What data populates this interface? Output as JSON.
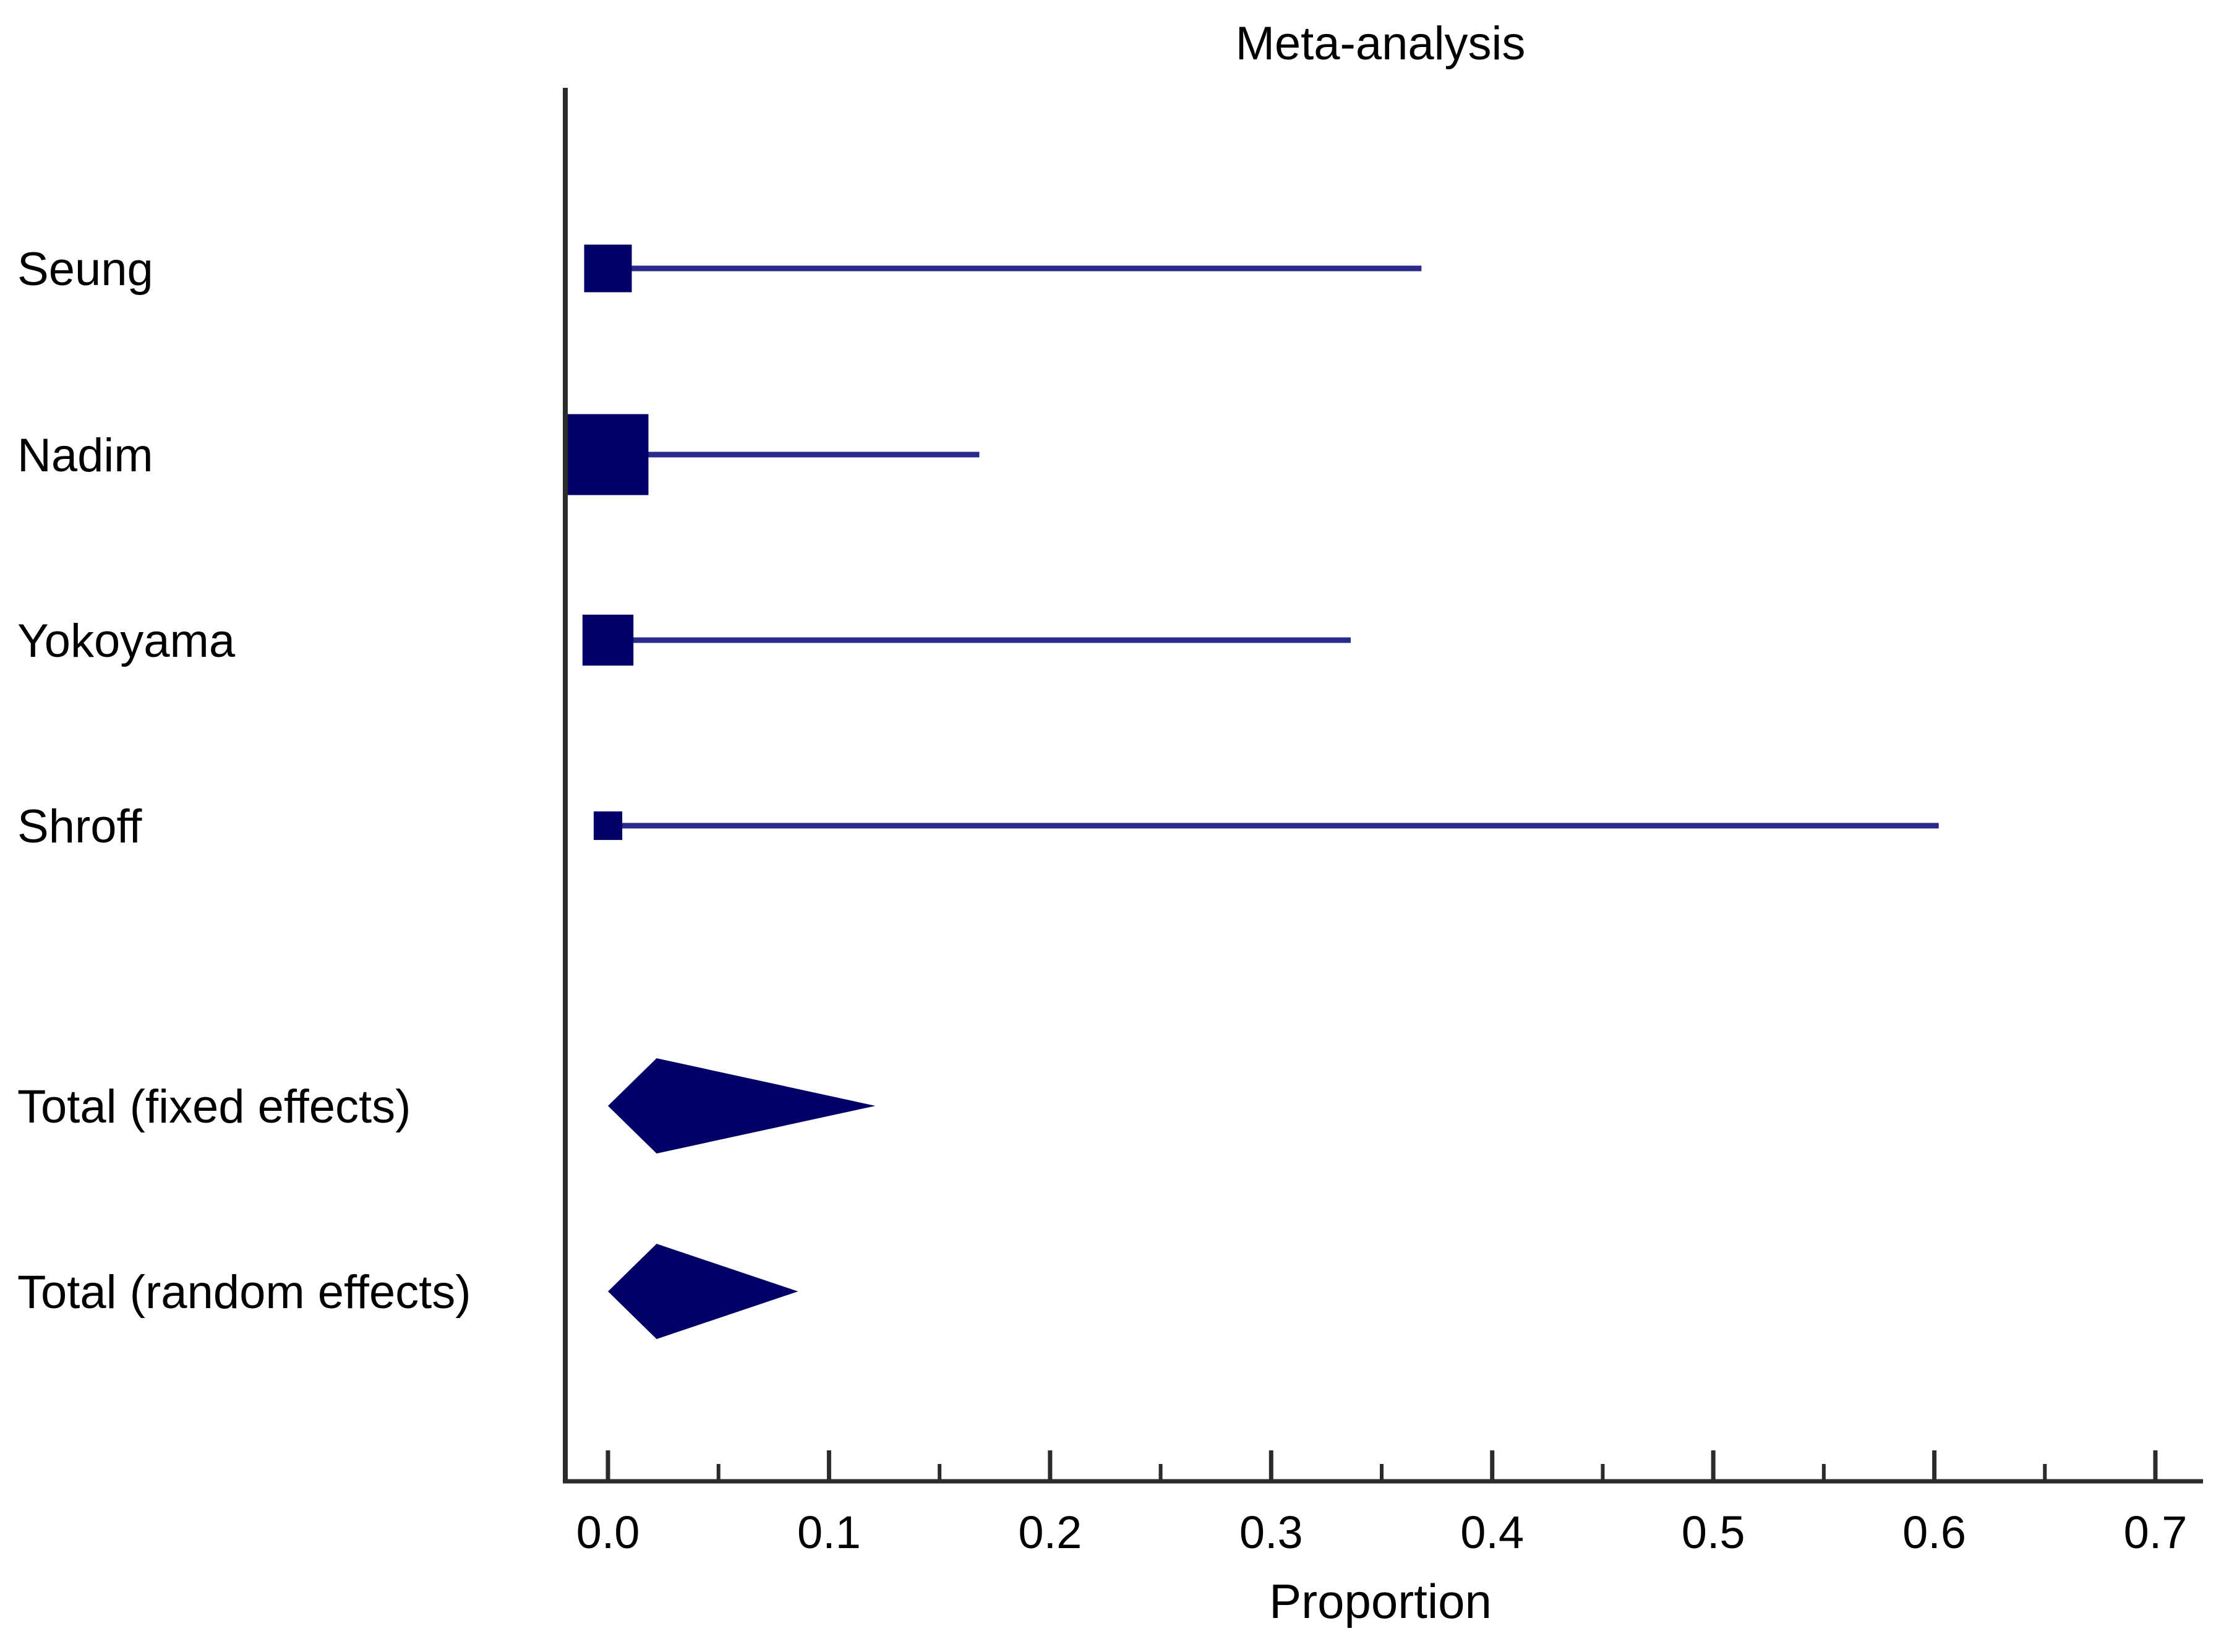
{
  "chart_data": {
    "type": "forest",
    "title": "Meta-analysis",
    "xlabel": "Proportion",
    "xlim": [
      0.0,
      0.7
    ],
    "major_ticks": [
      0.0,
      0.1,
      0.2,
      0.3,
      0.4,
      0.5,
      0.6,
      0.7
    ],
    "tick_labels": [
      "0.0",
      "0.1",
      "0.2",
      "0.3",
      "0.4",
      "0.5",
      "0.6",
      "0.7"
    ],
    "minor_ticks": [
      0.05,
      0.15,
      0.25,
      0.35,
      0.45,
      0.55,
      0.65
    ],
    "studies": [
      {
        "name": "Seung",
        "estimate": 0.0,
        "ci_lower": 0.0,
        "ci_upper": 0.368,
        "weight": 1.0
      },
      {
        "name": "Nadim",
        "estimate": 0.0,
        "ci_lower": 0.0,
        "ci_upper": 0.168,
        "weight": 1.7
      },
      {
        "name": "Yokoyama",
        "estimate": 0.0,
        "ci_lower": 0.0,
        "ci_upper": 0.336,
        "weight": 1.07
      },
      {
        "name": "Shroff",
        "estimate": 0.0,
        "ci_lower": 0.0,
        "ci_upper": 0.602,
        "weight": 0.6
      }
    ],
    "totals": [
      {
        "name": "Total (fixed effects)",
        "estimate": 0.022,
        "ci_lower": 0.0,
        "ci_upper": 0.121
      },
      {
        "name": "Total (random effects)",
        "estimate": 0.022,
        "ci_lower": 0.0,
        "ci_upper": 0.086
      }
    ],
    "colors": {
      "marker": "#000066",
      "ci_line": "#2a2a8c",
      "axis": "#2b2b2b"
    }
  }
}
